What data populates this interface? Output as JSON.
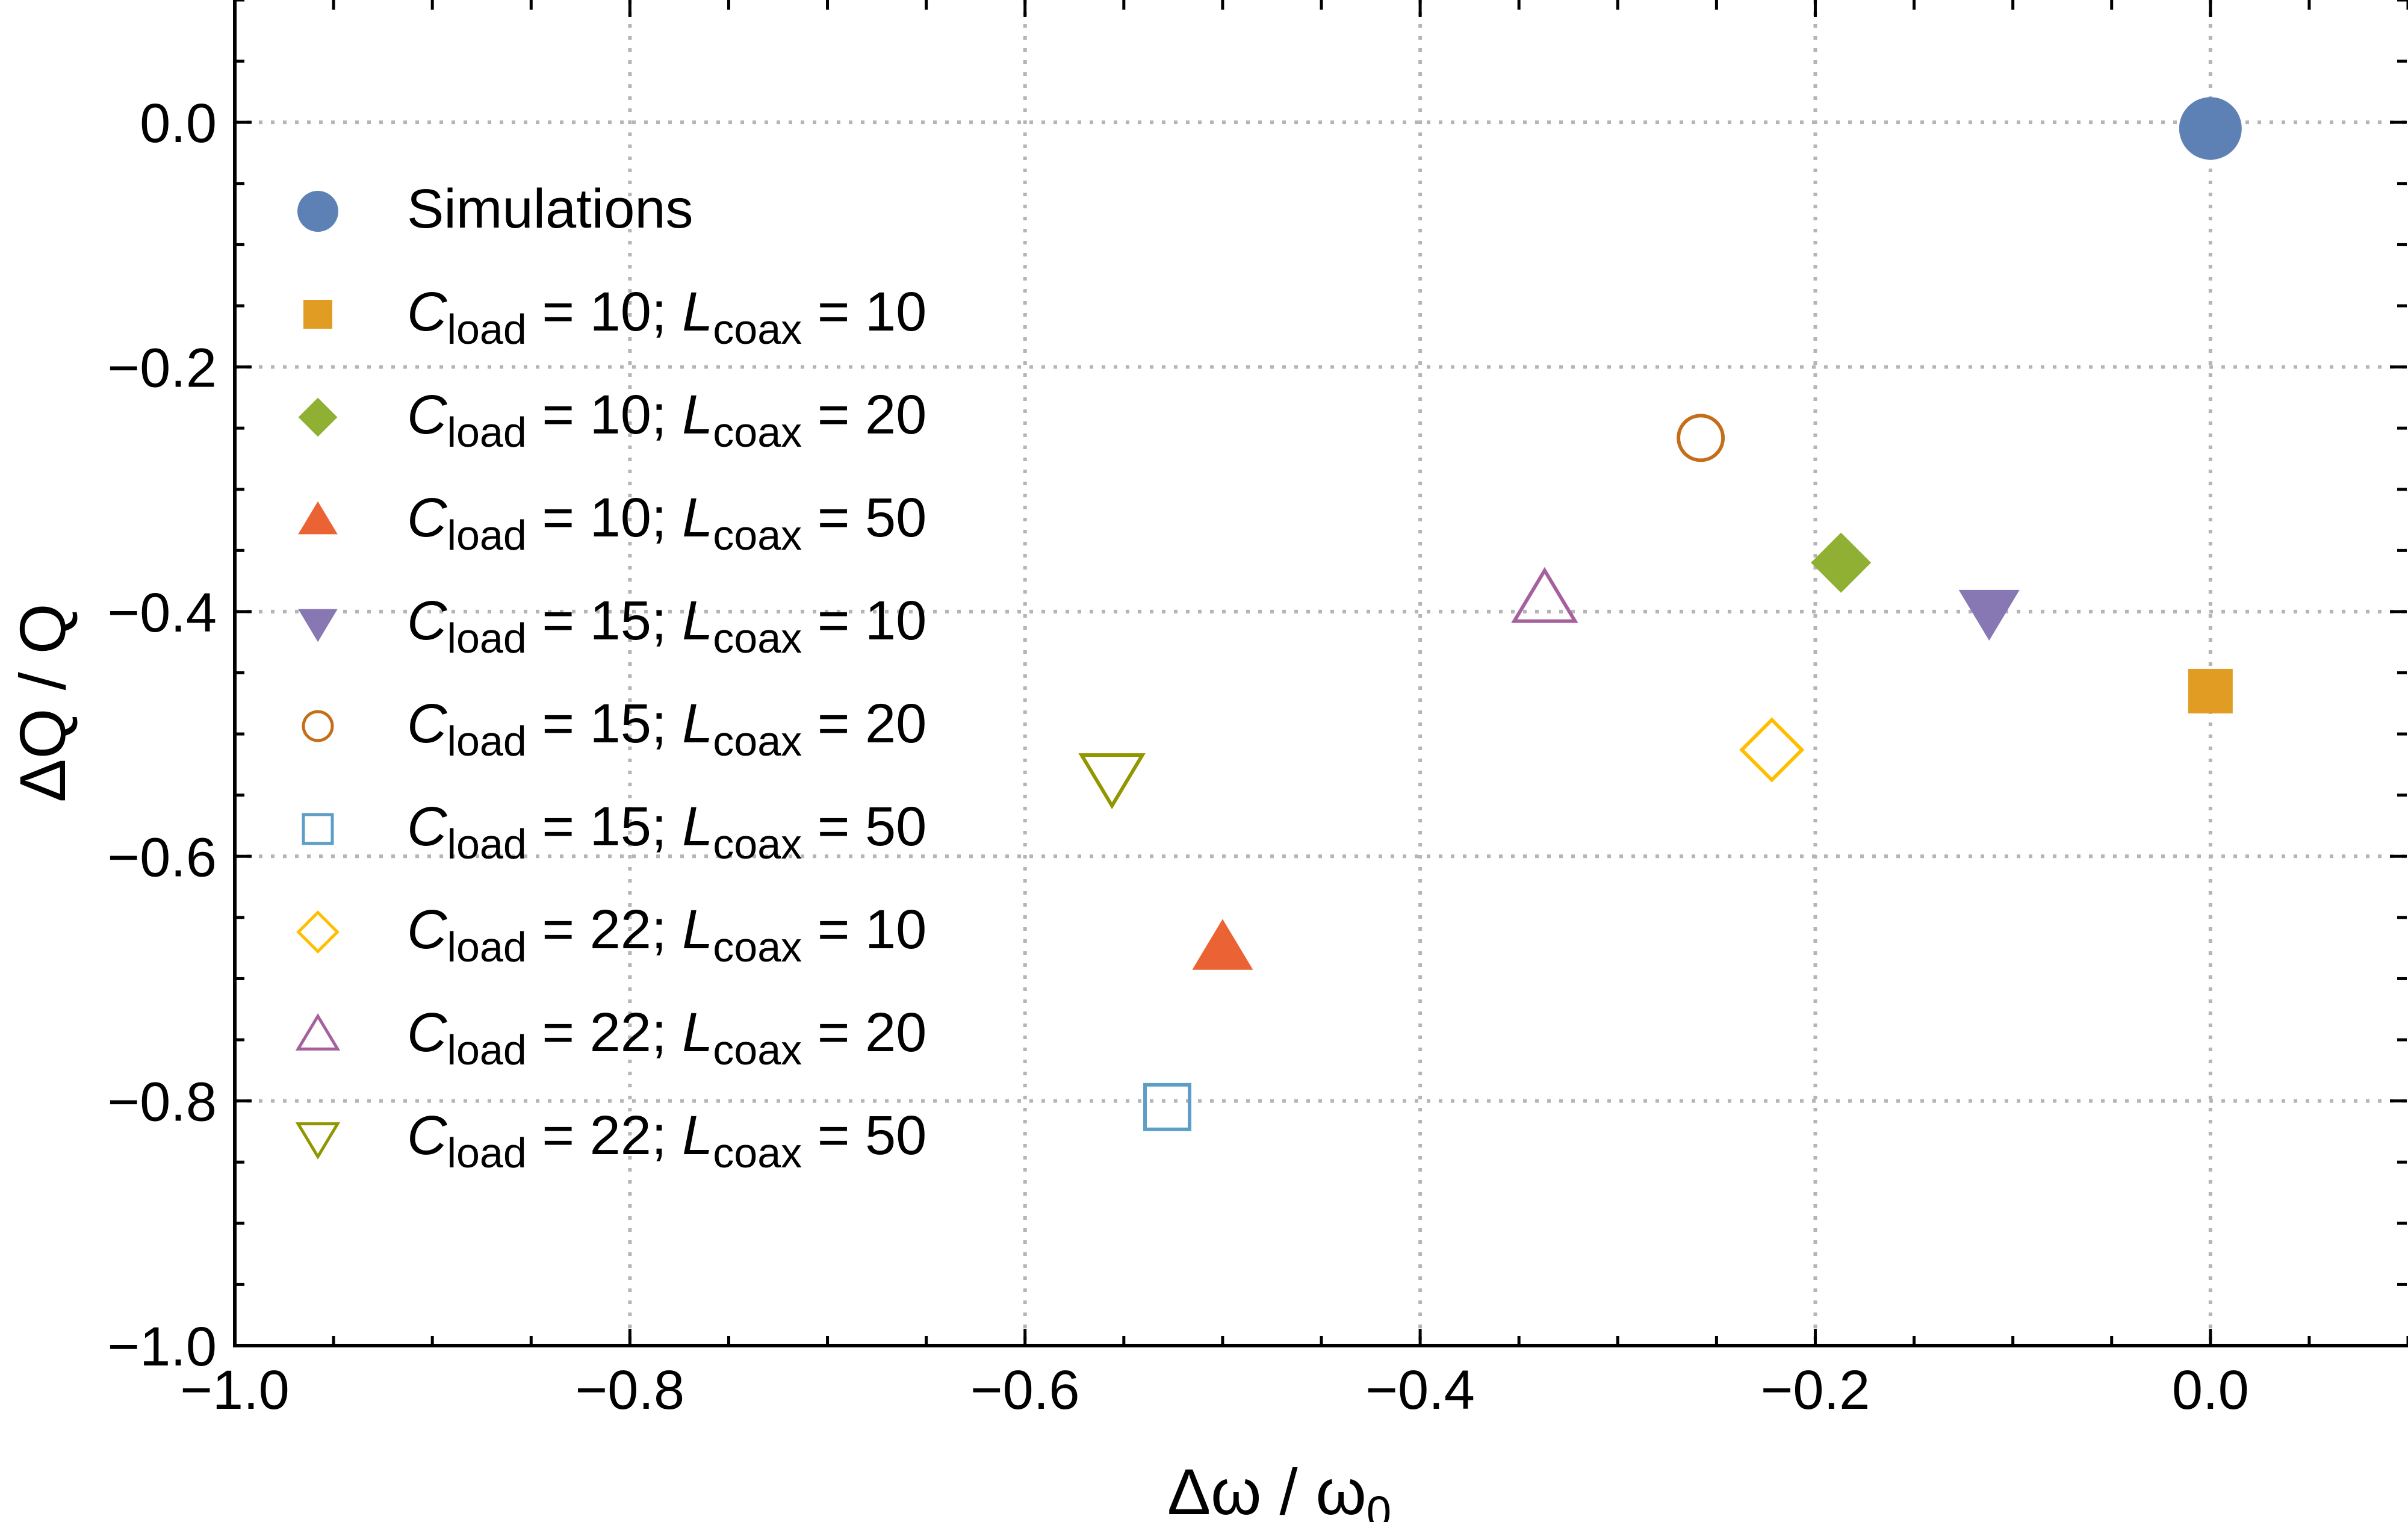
{
  "chart_data": {
    "type": "scatter",
    "xlabel_main": "Δω / ω",
    "xlabel_sub": "0",
    "ylabel": "ΔQ / Q",
    "xlim": [
      -1.0,
      0.1
    ],
    "ylim": [
      -1.0,
      0.1
    ],
    "xticks": [
      -1.0,
      -0.8,
      -0.6,
      -0.4,
      -0.2,
      0.0
    ],
    "yticks": [
      -1.0,
      -0.8,
      -0.6,
      -0.4,
      -0.2,
      0.0
    ],
    "xtick_labels": [
      "−1.0",
      "−0.8",
      "−0.6",
      "−0.4",
      "−0.2",
      "0.0"
    ],
    "ytick_labels": [
      "−1.0",
      "−0.8",
      "−0.6",
      "−0.4",
      "−0.2",
      "0.0"
    ],
    "grid": true,
    "legend_position": "left",
    "series": [
      {
        "label": {
          "text": "Simulations"
        },
        "marker": "circle",
        "filled": true,
        "color": "#5e81b5",
        "size": "large",
        "x": 0.0,
        "y": -0.005
      },
      {
        "label": {
          "sym": "C",
          "sub": "load",
          "eq": " = 10; ",
          "sym2": "L",
          "sub2": "coax",
          "eq2": " = 10"
        },
        "marker": "square",
        "filled": true,
        "color": "#e19c24",
        "x": 0.0,
        "y": -0.465
      },
      {
        "label": {
          "sym": "C",
          "sub": "load",
          "eq": " = 10; ",
          "sym2": "L",
          "sub2": "coax",
          "eq2": " = 20"
        },
        "marker": "diamond",
        "filled": true,
        "color": "#8fb032",
        "x": -0.187,
        "y": -0.36
      },
      {
        "label": {
          "sym": "C",
          "sub": "load",
          "eq": " = 10; ",
          "sym2": "L",
          "sub2": "coax",
          "eq2": " = 50"
        },
        "marker": "triangle-up",
        "filled": true,
        "color": "#eb6235",
        "x": -0.5,
        "y": -0.675
      },
      {
        "label": {
          "sym": "C",
          "sub": "load",
          "eq": " = 15; ",
          "sym2": "L",
          "sub2": "coax",
          "eq2": " = 10"
        },
        "marker": "triangle-down",
        "filled": true,
        "color": "#8778b3",
        "x": -0.112,
        "y": -0.4
      },
      {
        "label": {
          "sym": "C",
          "sub": "load",
          "eq": " = 15; ",
          "sym2": "L",
          "sub2": "coax",
          "eq2": " = 20"
        },
        "marker": "circle",
        "filled": false,
        "color": "#c56e1a",
        "x": -0.258,
        "y": -0.258
      },
      {
        "label": {
          "sym": "C",
          "sub": "load",
          "eq": " = 15; ",
          "sym2": "L",
          "sub2": "coax",
          "eq2": " = 50"
        },
        "marker": "square",
        "filled": false,
        "color": "#5d9ec7",
        "x": -0.528,
        "y": -0.805
      },
      {
        "label": {
          "sym": "C",
          "sub": "load",
          "eq": " = 22; ",
          "sym2": "L",
          "sub2": "coax",
          "eq2": " = 10"
        },
        "marker": "diamond",
        "filled": false,
        "color": "#ffbf00",
        "x": -0.222,
        "y": -0.513
      },
      {
        "label": {
          "sym": "C",
          "sub": "load",
          "eq": " = 22; ",
          "sym2": "L",
          "sub2": "coax",
          "eq2": " = 20"
        },
        "marker": "triangle-up",
        "filled": false,
        "color": "#a5609d",
        "x": -0.337,
        "y": -0.39
      },
      {
        "label": {
          "sym": "C",
          "sub": "load",
          "eq": " = 22; ",
          "sym2": "L",
          "sub2": "coax",
          "eq2": " = 50"
        },
        "marker": "triangle-down",
        "filled": false,
        "color": "#929600",
        "x": -0.556,
        "y": -0.535
      }
    ]
  }
}
